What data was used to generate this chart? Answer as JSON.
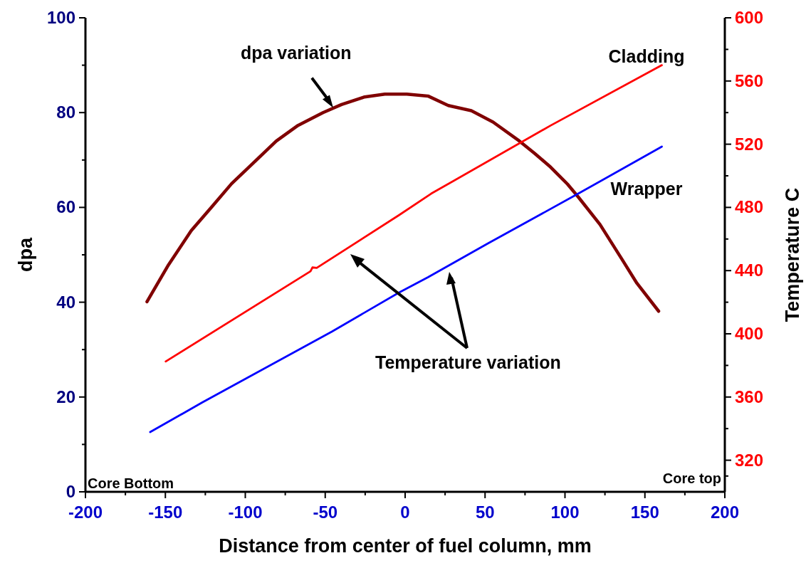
{
  "chart_data": {
    "type": "line",
    "xlabel": "Distance from center of fuel column, mm",
    "ylabel": "dpa",
    "y2label": "Temperature C",
    "xlim": [
      -200,
      200
    ],
    "xticks": [
      -200,
      -150,
      -100,
      -50,
      0,
      50,
      100,
      150,
      200
    ],
    "ylim": [
      0,
      100
    ],
    "yticks": [
      0,
      20,
      40,
      60,
      80,
      100
    ],
    "y2lim": [
      300,
      600
    ],
    "y2ticks": [
      320,
      360,
      400,
      440,
      480,
      520,
      560,
      600
    ],
    "grid": false,
    "marker": "none",
    "line_style": "solid",
    "series": [
      {
        "color": "#800000",
        "x": [
          -161.5,
          -148,
          -133.8,
          -121,
          -108.6,
          -94,
          -80.6,
          -67,
          -51.4,
          -39.8,
          -25.4,
          -12.7,
          1,
          14.3,
          27,
          41.4,
          55,
          71.5,
          81,
          91,
          101.6,
          108.3,
          121.9,
          135.4,
          145,
          158.6
        ],
        "values": [
          40.1,
          47.9,
          55.1,
          60.1,
          65,
          69.7,
          74,
          77.3,
          80,
          81.7,
          83.3,
          83.9,
          83.9,
          83.5,
          81.5,
          80.4,
          78,
          74,
          71.4,
          68.5,
          64.9,
          62.2,
          56.4,
          49.2,
          44,
          38.1
        ]
      },
      {
        "name": "Cladding",
        "color": "#ff0000",
        "axis": "y2",
        "x": [
          -149.8,
          -59.2,
          -58,
          -55.3,
          -4,
          16.3,
          91,
          160.6
        ],
        "values": [
          382.5,
          439.6,
          442,
          441.7,
          475,
          488.7,
          531.8,
          570
        ]
      },
      {
        "name": "Wrapper",
        "color": "#0000ff",
        "axis": "y2",
        "x": [
          -159.5,
          -127,
          -45.7,
          -4,
          14.3,
          52,
          108.3,
          160.6
        ],
        "values": [
          337.8,
          356.5,
          401.5,
          426,
          435.8,
          457.3,
          488.7,
          518.5
        ]
      }
    ],
    "annotations": [
      {
        "text": "dpa variation",
        "x": -45,
        "y": 81
      },
      "Temperature variation",
      "Core Bottom",
      "Core top"
    ]
  }
}
